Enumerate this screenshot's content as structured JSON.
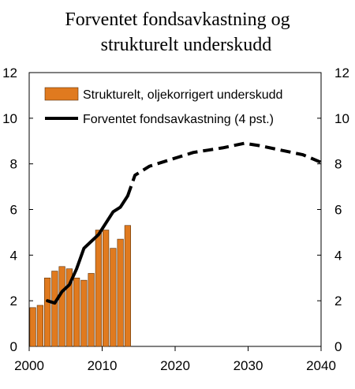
{
  "chart_data": {
    "type": "bar",
    "title_lines": [
      "Forventet fondsavkastning og",
      "strukturelt underskudd"
    ],
    "xlim": [
      2000,
      2040
    ],
    "ylim": [
      0,
      12
    ],
    "x_ticks": [
      "2000",
      "2010",
      "2020",
      "2030",
      "2040"
    ],
    "y_ticks": [
      "0",
      "2",
      "4",
      "6",
      "8",
      "10",
      "12"
    ],
    "y_ticks_right": [
      "0",
      "2",
      "4",
      "6",
      "8",
      "10",
      "12"
    ],
    "grid": false,
    "legend_position": "top-left",
    "series": [
      {
        "name": "Strukturelt, oljekorrigert underskudd",
        "kind": "bar",
        "color": "#E07A1F",
        "x": [
          2000,
          2001,
          2002,
          2003,
          2004,
          2005,
          2006,
          2007,
          2008,
          2009,
          2010,
          2011,
          2012,
          2013
        ],
        "values": [
          1.7,
          1.8,
          3.0,
          3.3,
          3.5,
          3.4,
          3.0,
          2.9,
          3.2,
          5.1,
          5.1,
          4.3,
          4.7,
          5.3
        ]
      },
      {
        "name": "Forventet fondsavkastning (4 pst.)",
        "kind": "line",
        "color": "#000000",
        "historical": {
          "x": [
            2002,
            2003,
            2004,
            2005,
            2006,
            2007,
            2008,
            2009,
            2010,
            2011,
            2012,
            2013
          ],
          "values": [
            2.0,
            1.9,
            2.4,
            2.7,
            3.4,
            4.3,
            4.6,
            4.9,
            5.4,
            5.9,
            6.1,
            6.6
          ]
        },
        "projected": {
          "x": [
            2013,
            2014,
            2016,
            2018,
            2020,
            2022,
            2024,
            2026,
            2029,
            2031,
            2034,
            2037,
            2040
          ],
          "values": [
            6.6,
            7.5,
            7.9,
            8.1,
            8.3,
            8.5,
            8.6,
            8.7,
            8.9,
            8.8,
            8.6,
            8.4,
            8.0
          ]
        }
      }
    ]
  }
}
